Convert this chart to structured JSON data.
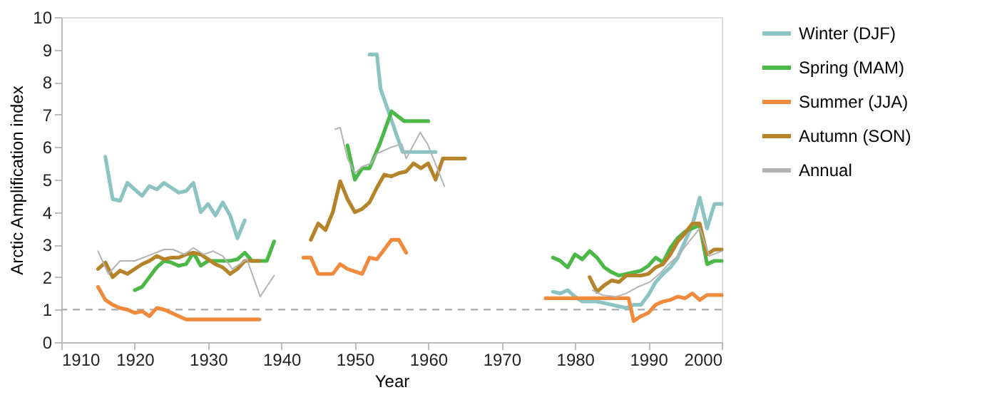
{
  "chart_data": {
    "type": "line",
    "xlabel": "Year",
    "ylabel": "Arctic Amplification index",
    "xlim": [
      1910,
      2000
    ],
    "xticks": [
      1910,
      1920,
      1930,
      1940,
      1950,
      1960,
      1970,
      1980,
      1990,
      2000
    ],
    "ylim": [
      0,
      10
    ],
    "yticks": [
      0,
      1,
      2,
      3,
      4,
      5,
      6,
      7,
      8,
      9,
      10
    ],
    "grid": false,
    "legend": "right",
    "marker": "none",
    "line_style": "solid",
    "ref_lines": [
      {
        "axis": "y",
        "value": 1,
        "color": "#aaaaaa",
        "line_style": "dashed"
      }
    ],
    "series": [
      {
        "name": "Winter (DJF)",
        "color": "#8cc3c3",
        "x": [
          1916,
          1917,
          1918,
          1919,
          1920,
          1921,
          1922,
          1923,
          1924,
          1925,
          1926,
          1927,
          1928,
          1929,
          1930,
          1931,
          1932,
          1933,
          1934,
          1935,
          1944,
          1952,
          1953,
          1953.5,
          1956.5,
          1961,
          1970,
          1977,
          1978,
          1979,
          1980,
          1981,
          1982,
          1983,
          1984,
          1985,
          1986,
          1987,
          1988,
          1989,
          1990,
          1991,
          1992,
          1993,
          1994,
          1995,
          1996,
          1997,
          1998,
          1999,
          2000
        ],
        "values": [
          5.7,
          4.4,
          4.35,
          4.9,
          4.7,
          4.5,
          4.8,
          4.7,
          4.9,
          4.75,
          4.6,
          4.65,
          4.9,
          4.0,
          4.25,
          3.9,
          4.3,
          3.9,
          3.2,
          3.75,
          null,
          8.85,
          8.85,
          7.8,
          5.85,
          5.85,
          null,
          1.55,
          1.5,
          1.6,
          1.4,
          1.25,
          1.25,
          1.25,
          1.2,
          1.15,
          1.1,
          1.05,
          1.15,
          1.15,
          1.45,
          1.85,
          2.1,
          2.3,
          2.6,
          3.1,
          3.6,
          4.45,
          3.5,
          4.25,
          4.25
        ]
      },
      {
        "name": "Spring (MAM)",
        "color": "#4cb848",
        "x": [
          1920,
          1921,
          1922,
          1923,
          1924,
          1925,
          1926,
          1927,
          1928,
          1929,
          1930,
          1931,
          1932,
          1933,
          1934,
          1935,
          1936,
          1937,
          1938,
          1939,
          1944,
          1949,
          1950,
          1951,
          1952,
          1953.4,
          1955,
          1956.7,
          1960,
          1970,
          1977,
          1978,
          1979,
          1980,
          1981,
          1982,
          1983,
          1984,
          1985,
          1986,
          1987,
          1988,
          1989,
          1990,
          1991,
          1992,
          1993,
          1994,
          1995,
          1996,
          1997,
          1998,
          1999,
          2000
        ],
        "values": [
          1.6,
          1.7,
          2.0,
          2.3,
          2.5,
          2.45,
          2.35,
          2.4,
          2.75,
          2.35,
          2.5,
          2.5,
          2.5,
          2.5,
          2.55,
          2.75,
          2.5,
          2.5,
          2.5,
          3.1,
          null,
          6.05,
          5.0,
          5.35,
          5.35,
          6.1,
          7.1,
          6.8,
          6.8,
          null,
          2.6,
          2.5,
          2.3,
          2.7,
          2.55,
          2.8,
          2.6,
          2.3,
          2.15,
          2.05,
          2.1,
          2.15,
          2.2,
          2.35,
          2.6,
          2.45,
          2.9,
          3.2,
          3.4,
          3.5,
          3.6,
          2.4,
          2.5,
          2.5
        ]
      },
      {
        "name": "Summer (JJA)",
        "color": "#f08a3c",
        "x": [
          1915,
          1916,
          1917,
          1918,
          1919,
          1920,
          1921,
          1922,
          1923,
          1924,
          1925,
          1926,
          1927,
          1937,
          1940,
          1943,
          1944,
          1945,
          1947,
          1948,
          1949,
          1951,
          1952,
          1953,
          1955,
          1956,
          1957,
          1970,
          1976,
          1987.3,
          1988,
          1989,
          1990,
          1991,
          1992,
          1993,
          1994,
          1995,
          1996,
          1997,
          1998,
          1999,
          2000
        ],
        "values": [
          1.7,
          1.3,
          1.15,
          1.05,
          1.0,
          0.9,
          0.95,
          0.8,
          1.05,
          1.0,
          0.9,
          0.8,
          0.7,
          0.7,
          null,
          2.6,
          2.6,
          2.1,
          2.1,
          2.4,
          2.25,
          2.1,
          2.6,
          2.55,
          3.15,
          3.15,
          2.75,
          null,
          1.35,
          1.35,
          0.65,
          0.8,
          0.9,
          1.15,
          1.25,
          1.3,
          1.4,
          1.35,
          1.5,
          1.3,
          1.45,
          1.45,
          1.45
        ]
      },
      {
        "name": "Autumn (SON)",
        "color": "#b5832a",
        "x": [
          1915,
          1916,
          1917,
          1918,
          1919,
          1920,
          1921,
          1922,
          1923,
          1924,
          1925,
          1926,
          1927,
          1928,
          1929,
          1930,
          1931,
          1932,
          1933,
          1934,
          1935,
          1936,
          1937,
          1940,
          1944,
          1945,
          1946,
          1947,
          1948,
          1949,
          1950,
          1951,
          1952,
          1953,
          1954,
          1955,
          1956,
          1957,
          1958,
          1959,
          1960,
          1961,
          1962,
          1965,
          1970,
          1982,
          1983,
          1984,
          1985,
          1986,
          1987,
          1988,
          1989,
          1990,
          1991,
          1992,
          1993,
          1994,
          1995,
          1996,
          1997,
          1998,
          1999,
          2000
        ],
        "values": [
          2.25,
          2.45,
          2.0,
          2.2,
          2.1,
          2.25,
          2.4,
          2.5,
          2.65,
          2.55,
          2.6,
          2.6,
          2.7,
          2.75,
          2.7,
          2.55,
          2.4,
          2.3,
          2.1,
          2.25,
          2.5,
          2.5,
          2.5,
          null,
          3.15,
          3.65,
          3.45,
          4.0,
          4.95,
          4.4,
          4.0,
          4.1,
          4.3,
          4.75,
          5.15,
          5.1,
          5.2,
          5.25,
          5.5,
          5.35,
          5.5,
          5.0,
          5.65,
          5.65,
          null,
          2.0,
          1.55,
          1.75,
          1.9,
          1.85,
          2.05,
          2.05,
          2.05,
          2.1,
          2.3,
          2.4,
          2.7,
          3.1,
          3.35,
          3.65,
          3.65,
          2.7,
          2.85,
          2.85
        ]
      },
      {
        "name": "Annual",
        "color": "#b3b3b3",
        "x": [
          1915,
          1916.4,
          1918,
          1920,
          1922.3,
          1924,
          1925.2,
          1926.8,
          1928,
          1929.4,
          1930.7,
          1932,
          1933.3,
          1935.3,
          1937.1,
          1939,
          1942,
          1947.3,
          1948,
          1949,
          1950,
          1951,
          1952.2,
          1953,
          1955,
          1956.4,
          1957,
          1958.9,
          1959.9,
          1962.2,
          1970,
          1982.4,
          1983.7,
          1985.6,
          1987,
          1988.6,
          1990.2,
          1991.5,
          1992.8,
          1994,
          1995.4,
          1997,
          1998.3,
          2000
        ],
        "values": [
          2.8,
          2.1,
          2.5,
          2.5,
          2.7,
          2.85,
          2.85,
          2.7,
          2.9,
          2.7,
          2.8,
          2.65,
          2.25,
          2.55,
          1.4,
          2.05,
          null,
          6.55,
          6.6,
          5.65,
          5.2,
          5.4,
          5.5,
          5.8,
          6.0,
          6.1,
          5.65,
          6.45,
          6.1,
          4.8,
          null,
          1.6,
          1.45,
          1.4,
          1.5,
          1.7,
          1.85,
          2.1,
          2.4,
          2.65,
          3.05,
          3.5,
          2.65,
          2.8
        ]
      }
    ]
  }
}
